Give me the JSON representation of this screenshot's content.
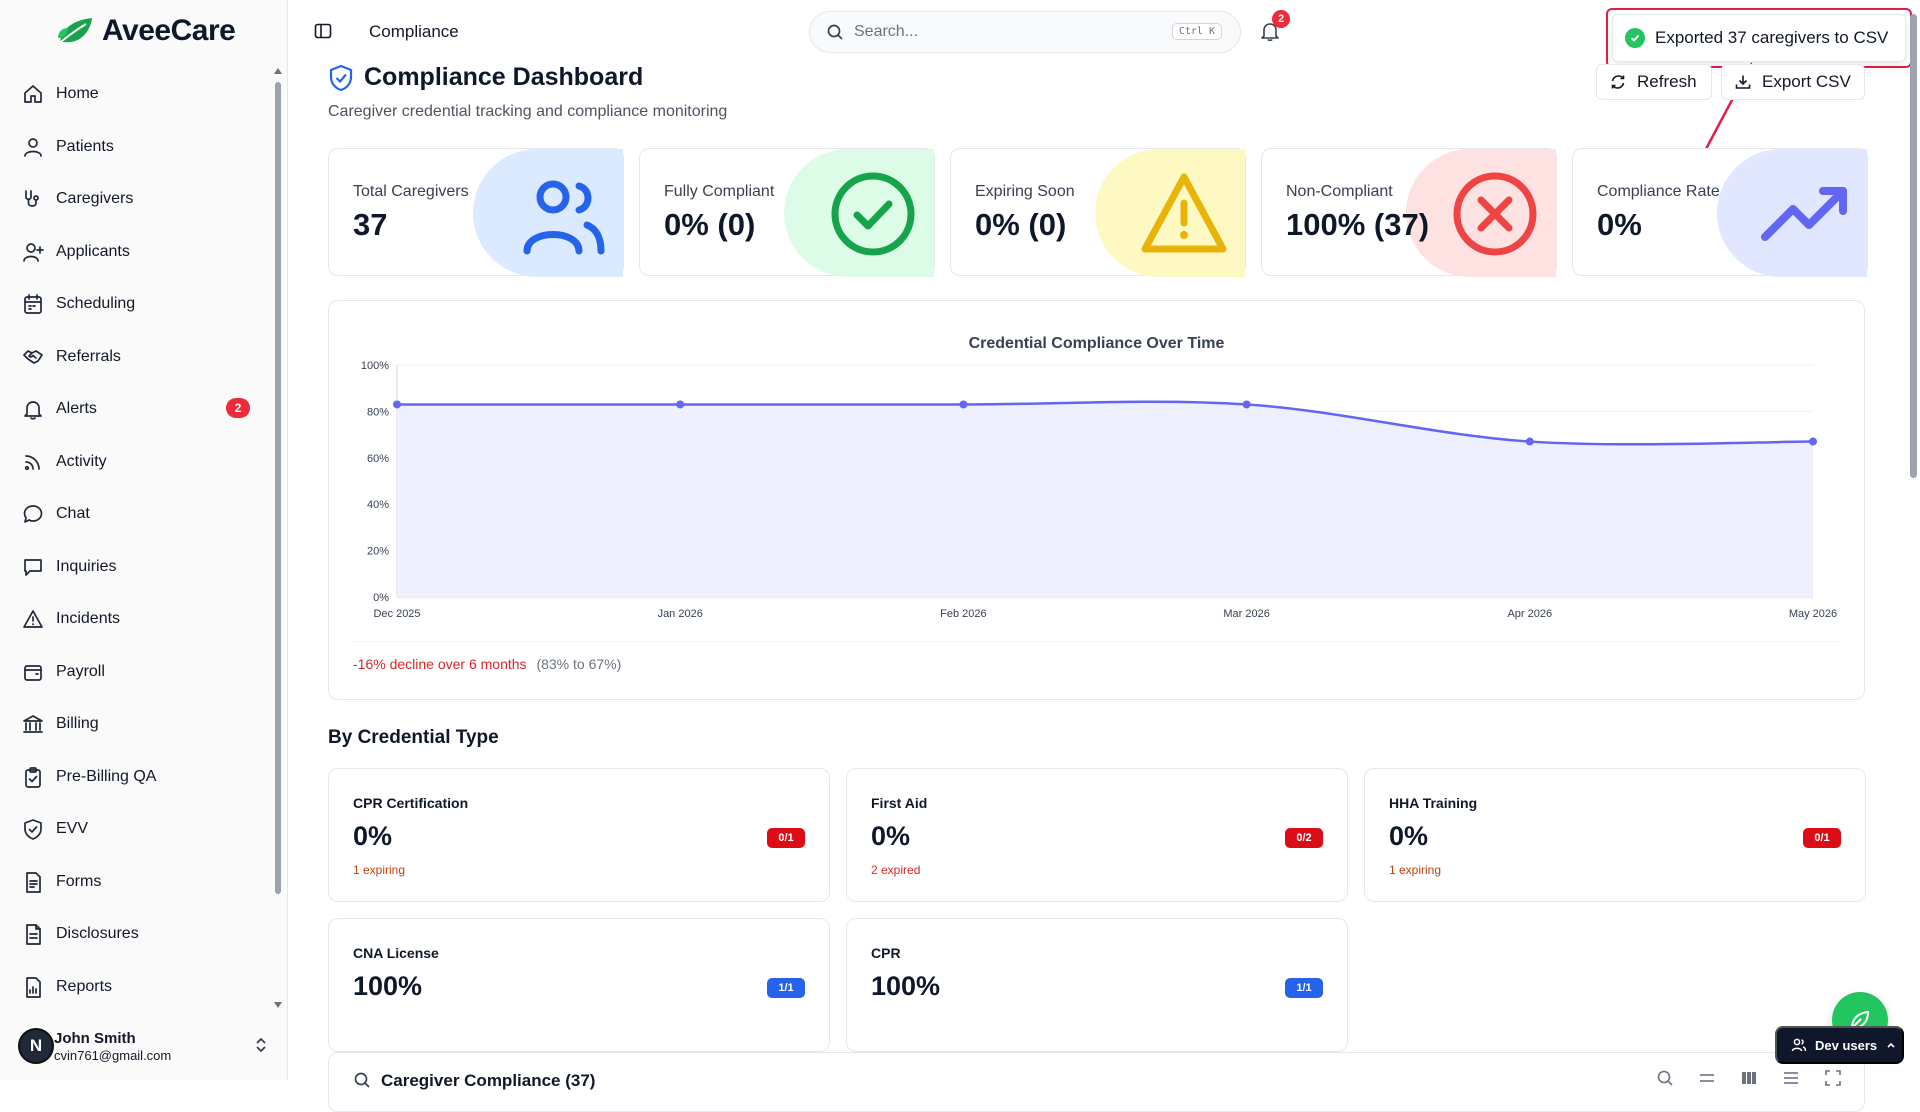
{
  "app": {
    "name": "AveeCare"
  },
  "sidebar": {
    "items": [
      {
        "label": "Home",
        "icon": "home-icon"
      },
      {
        "label": "Patients",
        "icon": "user-icon"
      },
      {
        "label": "Caregivers",
        "icon": "stethoscope-icon"
      },
      {
        "label": "Applicants",
        "icon": "user-plus-icon"
      },
      {
        "label": "Scheduling",
        "icon": "calendar-icon"
      },
      {
        "label": "Referrals",
        "icon": "handshake-icon"
      },
      {
        "label": "Alerts",
        "icon": "bell-icon",
        "badge": "2"
      },
      {
        "label": "Activity",
        "icon": "rss-icon"
      },
      {
        "label": "Chat",
        "icon": "chat-icon"
      },
      {
        "label": "Inquiries",
        "icon": "message-square-icon"
      },
      {
        "label": "Incidents",
        "icon": "warning-icon"
      },
      {
        "label": "Payroll",
        "icon": "wallet-icon"
      },
      {
        "label": "Billing",
        "icon": "bank-icon"
      },
      {
        "label": "Pre-Billing QA",
        "icon": "clipboard-check-icon"
      },
      {
        "label": "EVV",
        "icon": "shield-check-icon"
      },
      {
        "label": "Forms",
        "icon": "form-icon"
      },
      {
        "label": "Disclosures",
        "icon": "document-icon"
      },
      {
        "label": "Reports",
        "icon": "report-icon"
      }
    ],
    "user": {
      "initial": "N",
      "name": "John Smith",
      "email": "cvin761@gmail.com"
    }
  },
  "topbar": {
    "breadcrumb": "Compliance",
    "search_placeholder": "Search...",
    "search_shortcut": "Ctrl K",
    "notifications_count": "2"
  },
  "toast": {
    "message": "Exported 37 caregivers to CSV"
  },
  "header": {
    "title": "Compliance Dashboard",
    "subtitle": "Caregiver credential tracking and compliance monitoring",
    "refresh_label": "Refresh",
    "export_label": "Export CSV"
  },
  "stats": [
    {
      "label": "Total Caregivers",
      "value": "37",
      "icon": "users-icon",
      "tint": "#dbeafe",
      "color": "#2563eb"
    },
    {
      "label": "Fully Compliant",
      "value": "0% (0)",
      "icon": "check-circle-icon",
      "tint": "#dcfce7",
      "color": "#16a34a"
    },
    {
      "label": "Expiring Soon",
      "value": "0% (0)",
      "icon": "alert-triangle-icon",
      "tint": "#fef9c3",
      "color": "#eab308"
    },
    {
      "label": "Non-Compliant",
      "value": "100% (37)",
      "icon": "x-circle-icon",
      "tint": "#fee2e2",
      "color": "#ef4444"
    },
    {
      "label": "Compliance Rate",
      "value": "0%",
      "icon": "trending-up-icon",
      "tint": "#e0e7ff",
      "color": "#6366f1"
    }
  ],
  "chart_data": {
    "type": "area",
    "title": "Credential Compliance Over Time",
    "x": [
      "Dec 2025",
      "Jan 2026",
      "Feb 2026",
      "Mar 2026",
      "Apr 2026",
      "May 2026"
    ],
    "series": [
      {
        "values": [
          83,
          83,
          83,
          83,
          67,
          67
        ]
      }
    ],
    "ylim": [
      0,
      100
    ],
    "yticks": [
      "0%",
      "20%",
      "40%",
      "60%",
      "80%",
      "100%"
    ],
    "grid": true,
    "line_color": "#6366f1",
    "fill_color": "#eef0fd"
  },
  "trend": {
    "text": "-16% decline over 6 months",
    "range": "(83% to 67%)"
  },
  "credentials": {
    "heading": "By Credential Type",
    "items": [
      {
        "name": "CPR Certification",
        "pct": "0%",
        "note": "1 expiring",
        "pill": "0/1",
        "status": "red",
        "note_color": "orange"
      },
      {
        "name": "First Aid",
        "pct": "0%",
        "note": "2 expired",
        "pill": "0/2",
        "status": "red",
        "note_color": "red"
      },
      {
        "name": "HHA Training",
        "pct": "0%",
        "note": "1 expiring",
        "pill": "0/1",
        "status": "red",
        "note_color": "orange"
      },
      {
        "name": "CNA License",
        "pct": "100%",
        "note": "",
        "pill": "1/1",
        "status": "blue",
        "note_color": ""
      },
      {
        "name": "CPR",
        "pct": "100%",
        "note": "",
        "pill": "1/1",
        "status": "blue",
        "note_color": ""
      }
    ]
  },
  "table": {
    "title": "Caregiver Compliance (37)"
  },
  "dev": {
    "label": "Dev users"
  }
}
